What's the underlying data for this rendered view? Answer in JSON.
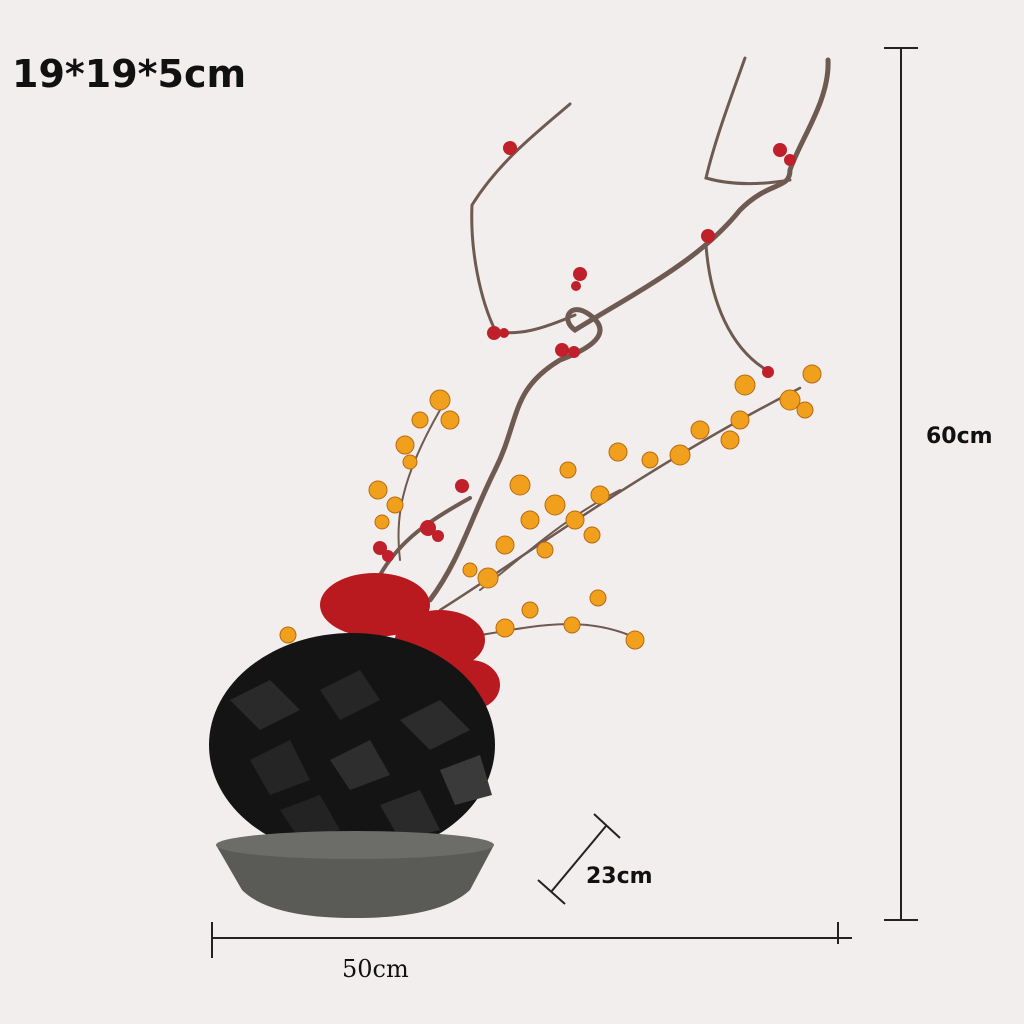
{
  "product": {
    "package_size": "19*19*5cm",
    "height": "60cm",
    "width": "50cm",
    "depth": "23cm"
  },
  "colors": {
    "background": "#f3eeee",
    "coal": "#111111",
    "berries": "#c0202a",
    "blossom": "#f0a01c",
    "branch": "#6e5a50",
    "bowl": "#5a5a56"
  }
}
